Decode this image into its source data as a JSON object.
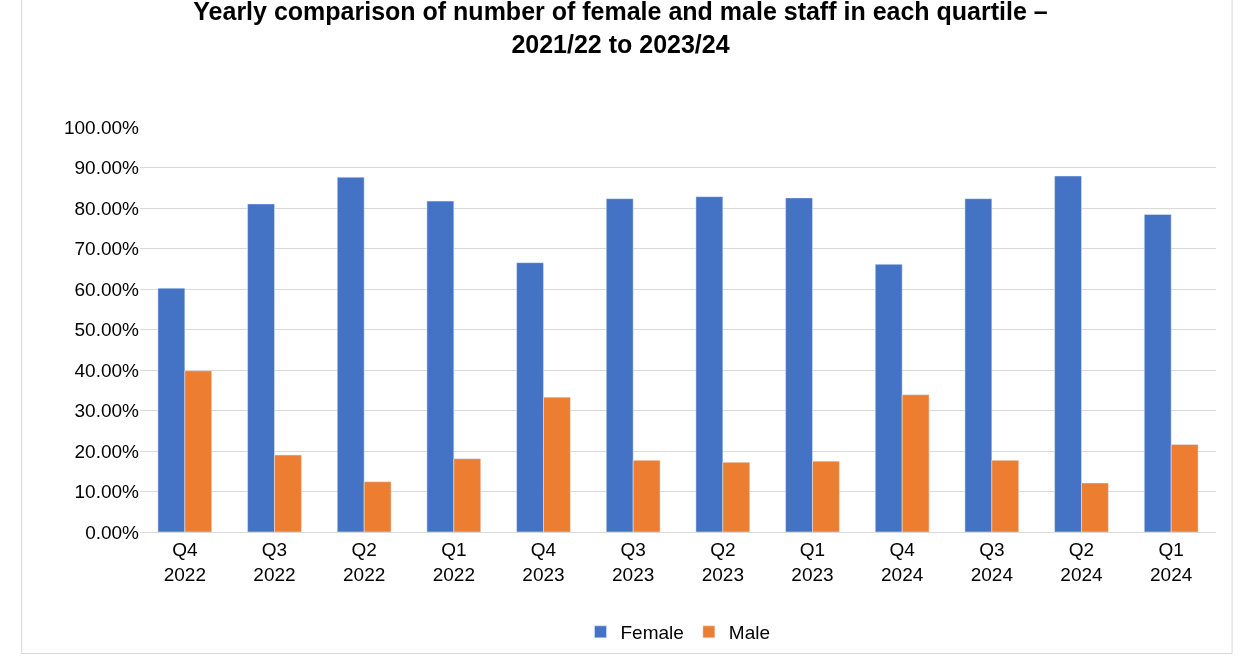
{
  "chart_data": {
    "type": "bar",
    "title": "Yearly comparison of number of female and male staff in each quartile –\n2021/22 to 2023/24",
    "categories": [
      "Q4\n2022",
      "Q3\n2022",
      "Q2\n2022",
      "Q1\n2022",
      "Q4\n2023",
      "Q3\n2023",
      "Q2\n2023",
      "Q1\n2023",
      "Q4\n2024",
      "Q3\n2024",
      "Q2\n2024",
      "Q1\n2024"
    ],
    "series": [
      {
        "name": "Female",
        "color": "#4472c4",
        "values": [
          60.2,
          81.0,
          87.6,
          81.7,
          66.5,
          82.3,
          82.8,
          82.5,
          66.1,
          82.3,
          87.9,
          78.4
        ]
      },
      {
        "name": "Male",
        "color": "#ed7d31",
        "values": [
          39.8,
          19.0,
          12.4,
          18.1,
          33.3,
          17.7,
          17.2,
          17.5,
          33.9,
          17.7,
          12.1,
          21.6
        ]
      }
    ],
    "ylim": [
      0,
      100
    ],
    "yticks": [
      {
        "value": 0,
        "label": "0.00%"
      },
      {
        "value": 10,
        "label": "10.00%"
      },
      {
        "value": 20,
        "label": "20.00%"
      },
      {
        "value": 30,
        "label": "30.00%"
      },
      {
        "value": 40,
        "label": "40.00%"
      },
      {
        "value": 50,
        "label": "50.00%"
      },
      {
        "value": 60,
        "label": "60.00%"
      },
      {
        "value": 70,
        "label": "70.00%"
      },
      {
        "value": 80,
        "label": "80.00%"
      },
      {
        "value": 90,
        "label": "90.00%"
      },
      {
        "value": 100,
        "label": "100.00%"
      }
    ],
    "grid": "y",
    "legend": "bottom"
  }
}
